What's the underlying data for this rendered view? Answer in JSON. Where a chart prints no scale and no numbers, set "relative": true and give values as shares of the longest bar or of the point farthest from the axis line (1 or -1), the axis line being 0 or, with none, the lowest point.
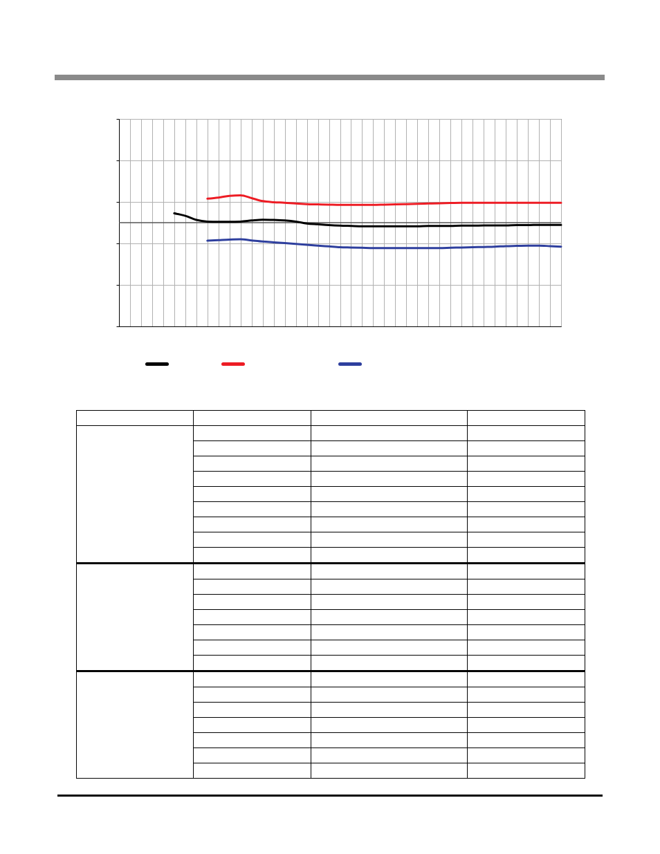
{
  "chart_data": {
    "type": "line",
    "relative": true,
    "grid": true,
    "tick_labels": false,
    "line_style": "solid",
    "marker": "none",
    "categories": [
      null,
      null,
      null,
      null,
      null,
      null,
      null,
      null,
      null,
      null,
      null,
      null,
      null,
      null,
      null,
      null,
      null,
      null,
      null,
      null,
      null,
      null,
      null,
      null,
      null,
      null,
      null,
      null,
      null,
      null,
      null,
      null,
      null,
      null,
      null,
      null,
      null,
      null,
      null,
      null,
      null
    ],
    "series": [
      {
        "color": "#000000",
        "values": [
          null,
          null,
          null,
          null,
          null,
          0.34,
          0.25,
          0.1,
          0.04,
          0.03,
          0.03,
          0.04,
          0.08,
          0.11,
          0.1,
          0.08,
          0.04,
          -0.03,
          -0.06,
          -0.09,
          -0.11,
          -0.12,
          -0.13,
          -0.13,
          -0.13,
          -0.13,
          -0.13,
          -0.13,
          -0.12,
          -0.12,
          -0.12,
          -0.11,
          -0.11,
          -0.1,
          -0.1,
          -0.1,
          -0.09,
          -0.09,
          -0.08,
          -0.08,
          -0.08
        ]
      },
      {
        "color": "#ed1c24",
        "values": [
          null,
          null,
          null,
          null,
          null,
          null,
          null,
          null,
          0.88,
          0.92,
          0.98,
          1,
          0.9,
          0.79,
          0.75,
          0.73,
          0.7,
          0.68,
          0.67,
          0.66,
          0.65,
          0.65,
          0.65,
          0.65,
          0.66,
          0.67,
          0.68,
          0.69,
          0.7,
          0.71,
          0.72,
          0.73,
          0.73,
          0.73,
          0.73,
          0.73,
          0.73,
          0.73,
          0.73,
          0.73,
          0.73
        ]
      },
      {
        "color": "#2e3f9e",
        "values": [
          null,
          null,
          null,
          null,
          null,
          null,
          null,
          null,
          -0.66,
          -0.64,
          -0.62,
          -0.61,
          -0.65,
          -0.69,
          -0.72,
          -0.75,
          -0.78,
          -0.81,
          -0.84,
          -0.87,
          -0.9,
          -0.91,
          -0.92,
          -0.93,
          -0.93,
          -0.93,
          -0.93,
          -0.93,
          -0.93,
          -0.93,
          -0.92,
          -0.91,
          -0.9,
          -0.89,
          -0.88,
          -0.86,
          -0.85,
          -0.84,
          -0.84,
          -0.86,
          -0.88
        ]
      }
    ]
  }
}
